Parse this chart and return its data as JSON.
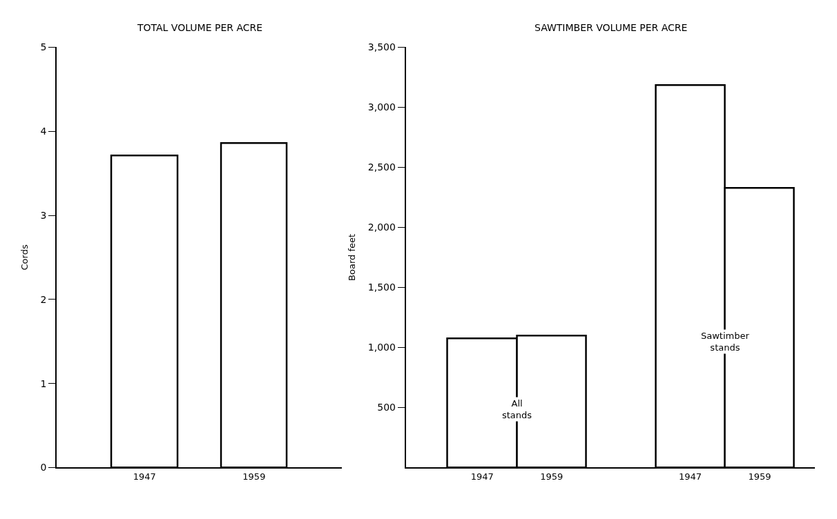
{
  "chart_data": [
    {
      "type": "bar",
      "title": "TOTAL VOLUME PER ACRE",
      "ylabel": "Cords",
      "categories": [
        "1947",
        "1959"
      ],
      "values": [
        3.71,
        3.86
      ],
      "color": "#ffffff",
      "ylim": [
        0,
        5
      ],
      "yticks": [
        0,
        1,
        2,
        3,
        4,
        5
      ]
    },
    {
      "type": "bar",
      "title": "SAWTIMBER VOLUME PER ACRE",
      "ylabel": "Board feet",
      "categories": [
        "1947",
        "1959",
        null,
        "1947",
        "1959"
      ],
      "values": [
        1075,
        1100,
        null,
        3185,
        2328
      ],
      "color": "#ffffff",
      "ylim": [
        0,
        3500
      ],
      "yticks": [
        {
          "value": 500,
          "label": "500"
        },
        {
          "value": 1000,
          "label": "1,000"
        },
        {
          "value": 1500,
          "label": "1,500"
        },
        {
          "value": 2000,
          "label": "2,000"
        },
        {
          "value": 2500,
          "label": "2,500"
        },
        {
          "value": 3000,
          "label": "3,000"
        },
        {
          "value": 3500,
          "label": "3,500"
        }
      ],
      "annotations": [
        "All\nstands",
        "Sawtimber\nstands"
      ]
    }
  ]
}
